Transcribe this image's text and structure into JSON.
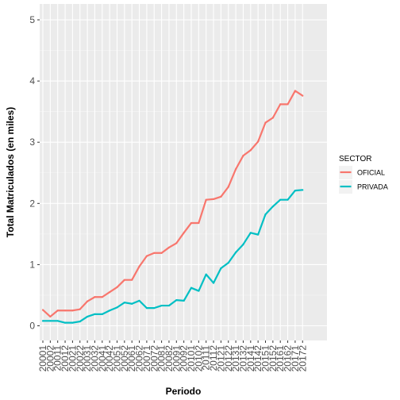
{
  "chart_data": {
    "type": "line",
    "xlabel": "Periodo",
    "ylabel": "Total Matriculados (en miles)",
    "categories": [
      "20001",
      "20002",
      "20011",
      "20012",
      "20021",
      "20022",
      "20031",
      "20032",
      "20041",
      "20042",
      "20051",
      "20052",
      "20061",
      "20062",
      "20071",
      "20072",
      "20081",
      "20082",
      "20091",
      "20092",
      "20101",
      "20102",
      "20111",
      "20112",
      "20121",
      "20122",
      "20131",
      "20132",
      "20141",
      "20142",
      "20151",
      "20152",
      "20161",
      "20162",
      "20171",
      "20172"
    ],
    "ylim": [
      0,
      5
    ],
    "yticks": [
      0,
      1,
      2,
      3,
      4,
      5
    ],
    "grid": true,
    "legend": {
      "title": "SECTOR",
      "position": "right"
    },
    "series": [
      {
        "name": "OFICIAL",
        "color": "#F8766D",
        "values": [
          0.26,
          0.15,
          0.25,
          0.25,
          0.25,
          0.27,
          0.4,
          0.47,
          0.47,
          0.55,
          0.63,
          0.75,
          0.75,
          0.97,
          1.14,
          1.19,
          1.19,
          1.28,
          1.35,
          1.52,
          1.68,
          1.68,
          2.06,
          2.07,
          2.11,
          2.27,
          2.56,
          2.78,
          2.87,
          3.01,
          3.32,
          3.4,
          3.62,
          3.62,
          3.84,
          3.76
        ]
      },
      {
        "name": "PRIVADA",
        "color": "#00BFC4",
        "values": [
          0.08,
          0.08,
          0.08,
          0.05,
          0.05,
          0.07,
          0.15,
          0.19,
          0.19,
          0.25,
          0.3,
          0.38,
          0.36,
          0.41,
          0.29,
          0.29,
          0.33,
          0.33,
          0.42,
          0.41,
          0.62,
          0.57,
          0.84,
          0.7,
          0.94,
          1.03,
          1.2,
          1.33,
          1.52,
          1.49,
          1.82,
          1.95,
          2.06,
          2.06,
          2.21,
          2.22
        ]
      }
    ]
  }
}
